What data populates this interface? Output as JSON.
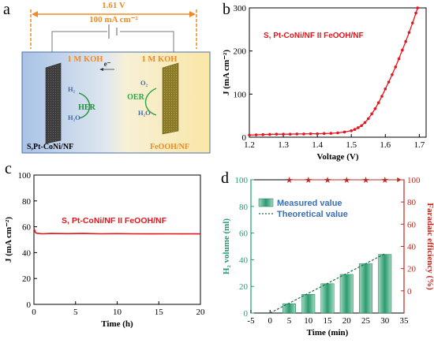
{
  "panels": {
    "a": {
      "letter": "a",
      "voltage": "1.61 V",
      "current": "100 mA cm⁻²",
      "left_electrolyte": "1 M KOH",
      "right_electrolyte": "1 M KOH",
      "electron": "e⁻",
      "hydrogen": "H₂",
      "water_left": "H₂O",
      "oxygen": "O₂",
      "water_right": "H₂O",
      "her": "HER",
      "oer": "OER",
      "cathode": "S,Pt-CoNi/NF",
      "anode": "FeOOH/NF",
      "colors": {
        "orange": "#f08a24",
        "her_green": "#1f8f3a",
        "oer_green": "#28a745",
        "bg_left": "#b8cde8",
        "bg_right": "#fbf0c8"
      }
    },
    "b": {
      "letter": "b"
    },
    "c": {
      "letter": "c"
    },
    "d": {
      "letter": "d"
    }
  },
  "chart_data": [
    {
      "id": "b",
      "type": "line",
      "title": "S, Pt-CoNi/NF II FeOOH/NF",
      "xlabel": "Voltage (V)",
      "ylabel": "J (mA cm⁻²)",
      "xlim": [
        1.2,
        1.72
      ],
      "ylim": [
        0,
        300
      ],
      "xticks": [
        1.2,
        1.3,
        1.4,
        1.5,
        1.6,
        1.7
      ],
      "xtick_labels": [
        "1.2",
        "1.3",
        "1.4",
        "1.5",
        "1.6",
        "1.7"
      ],
      "yticks": [
        0,
        100,
        200,
        300
      ],
      "ytick_labels": [
        "0",
        "100",
        "200",
        "300"
      ],
      "color": "#e8141b",
      "x": [
        1.2,
        1.22,
        1.24,
        1.26,
        1.28,
        1.3,
        1.32,
        1.34,
        1.36,
        1.38,
        1.4,
        1.42,
        1.44,
        1.46,
        1.48,
        1.5,
        1.51,
        1.52,
        1.53,
        1.54,
        1.55,
        1.56,
        1.57,
        1.58,
        1.59,
        1.6,
        1.61,
        1.62,
        1.63,
        1.64,
        1.65,
        1.66,
        1.67,
        1.68,
        1.69,
        1.695
      ],
      "y": [
        5,
        5.5,
        6,
        6.5,
        7,
        7,
        7,
        7.5,
        7.5,
        8,
        8,
        8.5,
        9,
        10,
        12,
        15,
        18,
        22,
        27,
        34,
        43,
        54,
        66,
        80,
        95,
        112,
        128,
        145,
        163,
        182,
        202,
        222,
        243,
        265,
        288,
        300
      ]
    },
    {
      "id": "c",
      "type": "line",
      "title": "S, Pt-CoNi/NF II FeOOH/NF",
      "xlabel": "Time (h)",
      "ylabel": "J (mA cm⁻²)",
      "xlim": [
        0,
        20
      ],
      "ylim": [
        0,
        100
      ],
      "xticks": [
        0,
        5,
        10,
        15,
        20
      ],
      "xtick_labels": [
        "0",
        "5",
        "10",
        "15",
        "20"
      ],
      "yticks": [
        0,
        20,
        40,
        60,
        80,
        100
      ],
      "ytick_labels": [
        "0",
        "20",
        "40",
        "60",
        "80",
        "100"
      ],
      "color": "#e8141b",
      "x": [
        0,
        0.1,
        0.2,
        0.35,
        0.6,
        1,
        2,
        4,
        6,
        8,
        10,
        12,
        14,
        16,
        18,
        20
      ],
      "y": [
        59,
        57,
        55.5,
        55,
        54.8,
        54.6,
        54.8,
        54.7,
        54.8,
        54.6,
        54.7,
        54.6,
        54.5,
        54.6,
        54.5,
        54.5
      ]
    },
    {
      "id": "d",
      "type": "bar",
      "xlabel": "Time (min)",
      "ylabel": "H₂ volume (ml)",
      "ylabel_right": "Faradaic efficiency (%)",
      "xlim": [
        -5,
        35
      ],
      "ylim": [
        0,
        100
      ],
      "ylim_right": [
        -20,
        100
      ],
      "xticks": [
        -5,
        0,
        5,
        10,
        15,
        20,
        25,
        30,
        35
      ],
      "xtick_labels": [
        "-5",
        "0",
        "5",
        "10",
        "15",
        "20",
        "25",
        "30",
        "35"
      ],
      "yticks": [
        0,
        20,
        40,
        60,
        80,
        100
      ],
      "ytick_labels": [
        "0",
        "20",
        "40",
        "60",
        "80",
        "100"
      ],
      "yticks_right": [
        0,
        20,
        40,
        60,
        80,
        100
      ],
      "ytick_labels_right": [
        "0",
        "20",
        "40",
        "60",
        "80",
        "100"
      ],
      "left_color": "#1f9e74",
      "right_color": "#c0281f",
      "legend": [
        "Measured value",
        "Theoretical value"
      ],
      "legend_position": "top-left",
      "bars": {
        "name": "Measured value",
        "x": [
          5,
          10,
          15,
          20,
          25,
          30
        ],
        "values": [
          7,
          14,
          22,
          29,
          37,
          44
        ]
      },
      "theoretical": {
        "name": "Theoretical value",
        "x": [
          0,
          30
        ],
        "values": [
          0,
          44.5
        ]
      },
      "efficiency": {
        "x": [
          5,
          10,
          15,
          20,
          25,
          30
        ],
        "values": [
          100,
          100,
          100,
          100,
          100,
          100
        ]
      }
    }
  ]
}
